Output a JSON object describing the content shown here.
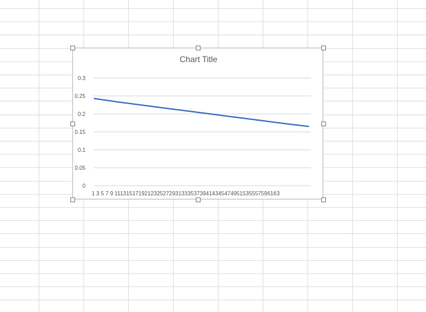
{
  "colors": {
    "gridline": "#d9d9d9",
    "sheet_gridline": "#e1e1e1",
    "series_line": "#4472c4",
    "text": "#595959"
  },
  "chart_data": {
    "type": "line",
    "title": "Chart Title",
    "xlabel": "",
    "ylabel": "",
    "ylim": [
      0,
      0.3
    ],
    "grid": true,
    "legend": "none",
    "y_ticks": [
      "0",
      "0.05",
      "0.1",
      "0.15",
      "0.2",
      "0.25",
      "0.3"
    ],
    "x_tick_labels": "1 3 5 7 9 11131517192123252729313335373941434547495153555759616З",
    "x": [
      1,
      63
    ],
    "series": [
      {
        "x": [
          1,
          8,
          16,
          24,
          32,
          40,
          48,
          56,
          63
        ],
        "values": [
          0.243,
          0.233,
          0.223,
          0.213,
          0.203,
          0.193,
          0.183,
          0.173,
          0.165
        ]
      }
    ]
  }
}
